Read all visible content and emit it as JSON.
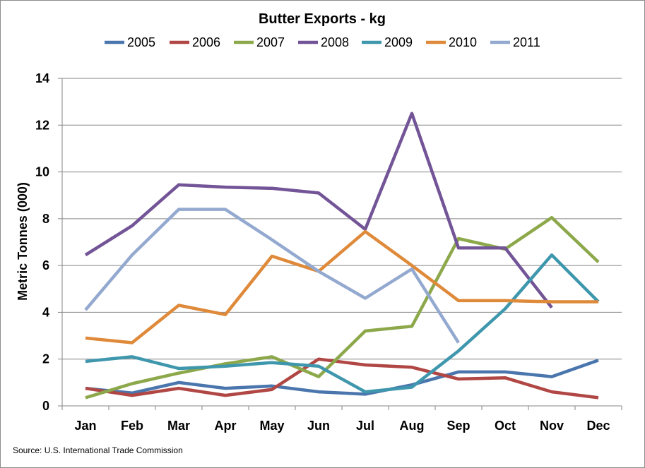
{
  "chart_data": {
    "type": "line",
    "title": "Butter Exports - kg",
    "ylabel": "Metric Tonnes (000)",
    "xlabel": "",
    "source": "Source: U.S. International Trade Commission",
    "categories": [
      "Jan",
      "Feb",
      "Mar",
      "Apr",
      "May",
      "Jun",
      "Jul",
      "Aug",
      "Sep",
      "Oct",
      "Nov",
      "Dec"
    ],
    "ylim": [
      0,
      14
    ],
    "yticks": [
      "0",
      "2",
      "4",
      "6",
      "8",
      "10",
      "12",
      "14"
    ],
    "grid": true,
    "legend_position": "top",
    "series": [
      {
        "name": "2005",
        "color": "#4a76ad",
        "values": [
          0.75,
          0.55,
          1.0,
          0.75,
          0.85,
          0.6,
          0.5,
          0.9,
          1.45,
          1.45,
          1.25,
          1.95
        ]
      },
      {
        "name": "2006",
        "color": "#b04745",
        "values": [
          0.75,
          0.45,
          0.75,
          0.45,
          0.7,
          2.0,
          1.75,
          1.65,
          1.15,
          1.2,
          0.6,
          0.35
        ]
      },
      {
        "name": "2007",
        "color": "#8ca84a",
        "values": [
          0.35,
          0.95,
          1.4,
          1.8,
          2.1,
          1.25,
          3.2,
          3.4,
          7.15,
          6.7,
          8.05,
          6.15
        ]
      },
      {
        "name": "2008",
        "color": "#725497",
        "values": [
          6.45,
          7.7,
          9.45,
          9.35,
          9.3,
          9.1,
          7.55,
          12.5,
          6.75,
          6.75,
          4.2,
          null
        ]
      },
      {
        "name": "2009",
        "color": "#3f97ad",
        "values": [
          1.9,
          2.1,
          1.6,
          1.7,
          1.85,
          1.7,
          0.6,
          0.8,
          2.35,
          4.15,
          6.45,
          4.45
        ]
      },
      {
        "name": "2010",
        "color": "#df8a3a",
        "values": [
          2.9,
          2.7,
          4.3,
          3.9,
          6.4,
          5.75,
          7.45,
          6.0,
          4.5,
          4.5,
          4.45,
          4.45
        ]
      },
      {
        "name": "2011",
        "color": "#93a9cf",
        "values": [
          4.1,
          6.45,
          8.4,
          8.4,
          7.1,
          5.75,
          4.6,
          5.85,
          2.7,
          null,
          null,
          null
        ]
      }
    ]
  }
}
